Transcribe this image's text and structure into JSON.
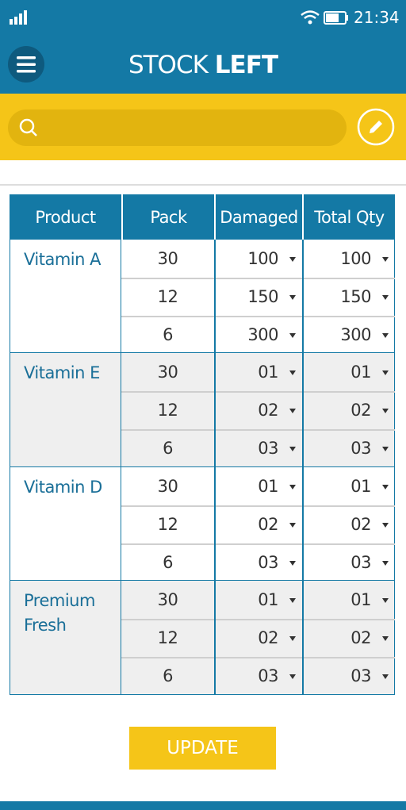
{
  "status_bar": {
    "time": "21:34"
  },
  "header": {
    "title_regular": "STOCK",
    "title_bold": "LEFT"
  },
  "table": {
    "columns": [
      "Product",
      "Pack",
      "Damaged",
      "Total Qty"
    ],
    "groups": [
      {
        "product": "Vitamin A",
        "rows": [
          [
            "30",
            "100",
            "100"
          ],
          [
            "12",
            "150",
            "150"
          ],
          [
            "6",
            "300",
            "300"
          ]
        ]
      },
      {
        "product": "Vitamin E",
        "rows": [
          [
            "30",
            "01",
            "01"
          ],
          [
            "12",
            "02",
            "02"
          ],
          [
            "6",
            "03",
            "03"
          ]
        ]
      },
      {
        "product": "Vitamin D",
        "rows": [
          [
            "30",
            "01",
            "01"
          ],
          [
            "12",
            "02",
            "02"
          ],
          [
            "6",
            "03",
            "03"
          ]
        ]
      },
      {
        "product": "Premium Fresh",
        "rows": [
          [
            "30",
            "01",
            "01"
          ],
          [
            "12",
            "02",
            "02"
          ],
          [
            "6",
            "03",
            "03"
          ]
        ]
      }
    ]
  },
  "button": {
    "label": "UPDATE"
  }
}
